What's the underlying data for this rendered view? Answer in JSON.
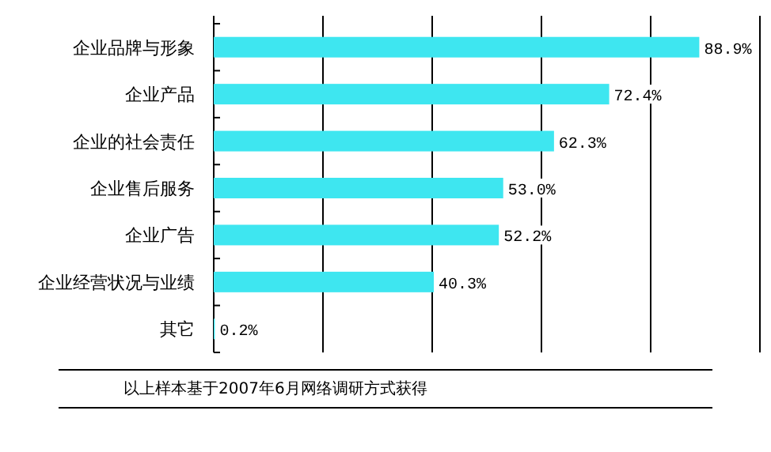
{
  "chart_data": {
    "type": "bar",
    "orientation": "horizontal",
    "categories": [
      "企业品牌与形象",
      "企业产品",
      "企业的社会责任",
      "企业售后服务",
      "企业广告",
      "企业经营状况与业绩",
      "其它"
    ],
    "values": [
      88.9,
      72.4,
      62.3,
      53.0,
      52.2,
      40.3,
      0.2
    ],
    "value_labels": [
      "88.9%",
      "72.4%",
      "62.3%",
      "53.0%",
      "52.2%",
      "40.3%",
      "0.2%"
    ],
    "color": "#3ee6f0",
    "xlim": [
      0,
      100
    ],
    "xticks": [
      {
        "value": 0,
        "label": null
      },
      {
        "value": 20,
        "label": null
      },
      {
        "value": 40,
        "label": null
      },
      {
        "value": 60,
        "label": null
      },
      {
        "value": 80,
        "label": null
      },
      {
        "value": 100,
        "label": null
      }
    ],
    "grid": "x",
    "annotations": [
      "以上样本基于2007年6月网络调研方式获得"
    ]
  }
}
